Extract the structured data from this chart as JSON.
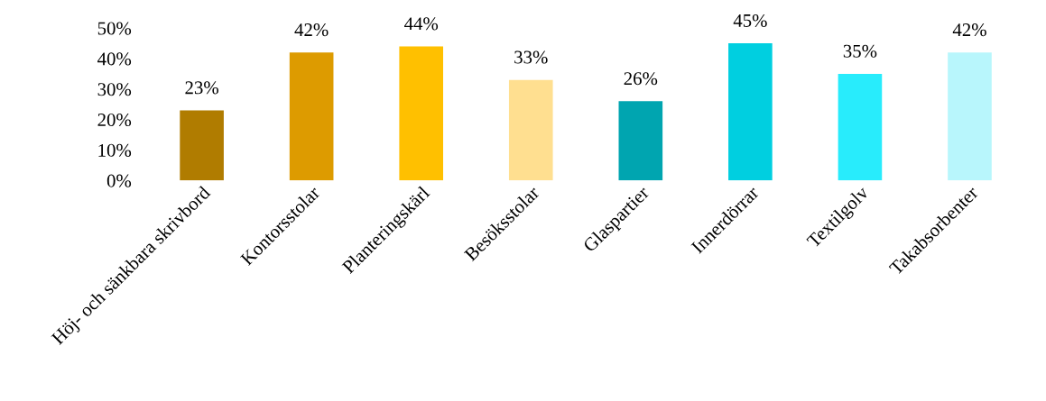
{
  "chart_data": {
    "type": "bar",
    "categories": [
      "Höj- och sänkbara skrivbord",
      "Kontorsstolar",
      "Planteringskärl",
      "Besöksstolar",
      "Glaspartier",
      "Innerdörrar",
      "Textilgolv",
      "Takabsorbenter"
    ],
    "values": [
      23,
      42,
      44,
      33,
      26,
      45,
      35,
      42
    ],
    "value_labels": [
      "23%",
      "42%",
      "44%",
      "33%",
      "26%",
      "45%",
      "35%",
      "42%"
    ],
    "colors": [
      "#b07c00",
      "#dd9b00",
      "#ffc000",
      "#ffdf90",
      "#00a5b0",
      "#00cfe0",
      "#28ecfc",
      "#b8f6fc"
    ],
    "ylim": [
      0,
      50
    ],
    "yticks": [
      {
        "value": 0,
        "label": "0%"
      },
      {
        "value": 10,
        "label": "10%"
      },
      {
        "value": 20,
        "label": "20%"
      },
      {
        "value": 30,
        "label": "30%"
      },
      {
        "value": 40,
        "label": "40%"
      },
      {
        "value": 50,
        "label": "50%"
      }
    ],
    "grid": false,
    "legend": false
  }
}
